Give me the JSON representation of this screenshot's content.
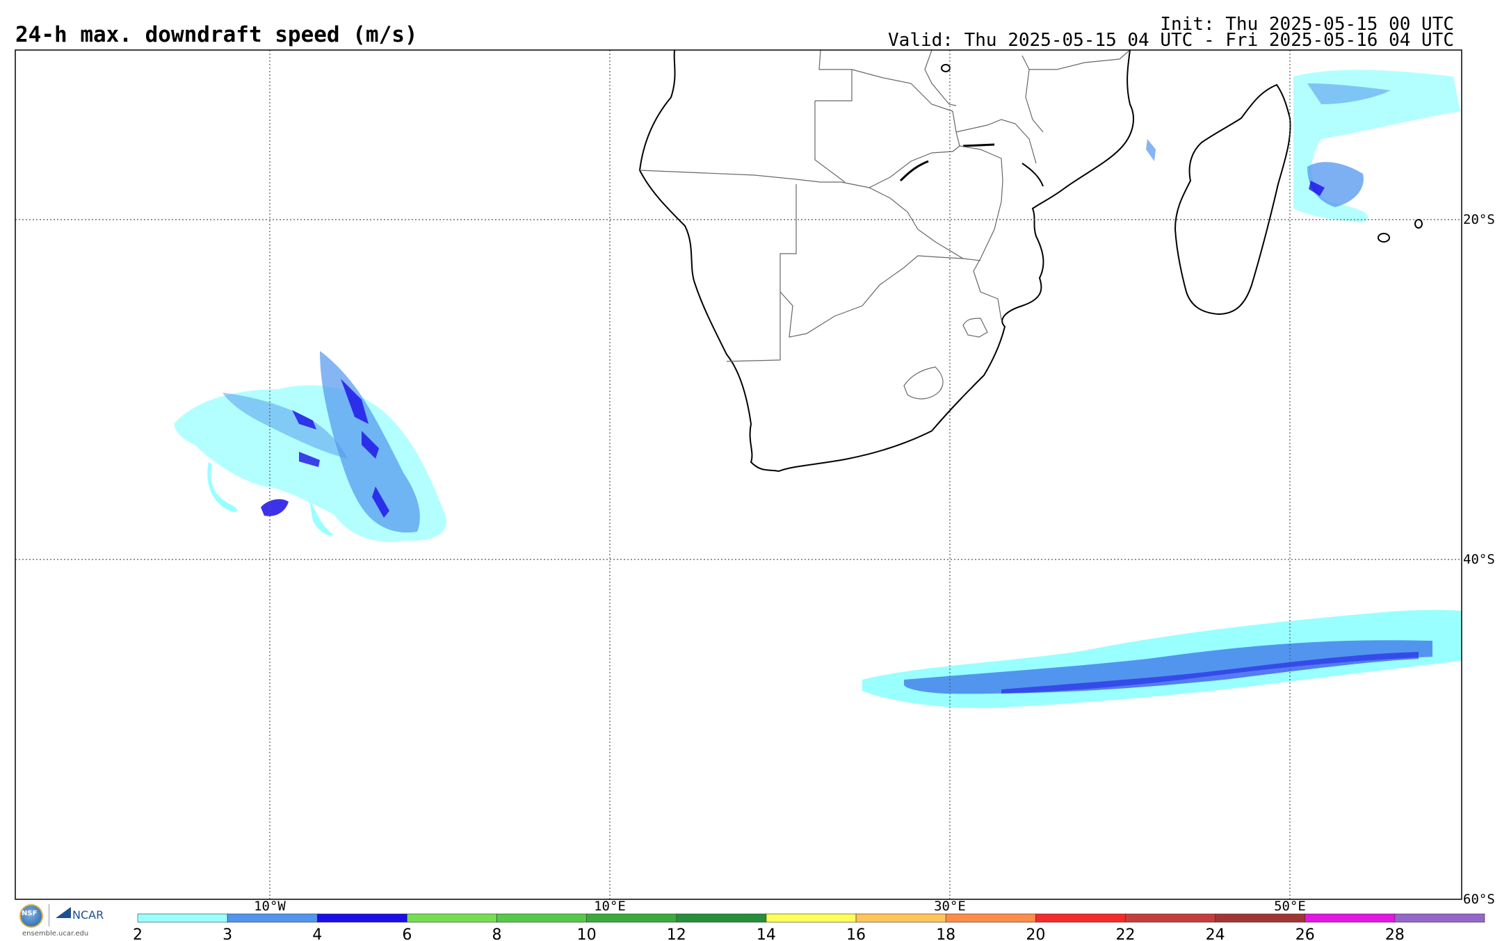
{
  "title": "24-h max. downdraft speed (m/s)",
  "init_text": "Init: Thu 2025-05-15 00 UTC",
  "valid_text": "Valid: Thu 2025-05-15 04 UTC - Fri 2025-05-16 04 UTC",
  "map": {
    "projection": "cylindrical",
    "lon_range": [
      -25,
      60
    ],
    "lat_range": [
      -60,
      -10
    ],
    "lon_grid": [
      -10,
      10,
      30,
      50
    ],
    "lat_grid": [
      -20,
      -40,
      -60
    ],
    "lon_labels": [
      "10°W",
      "10°E",
      "30°E",
      "50°E"
    ],
    "lat_labels": [
      "20°S",
      "40°S",
      "60°S"
    ],
    "coast_color": "#000000",
    "border_color": "#555555"
  },
  "colorbar": {
    "ticks": [
      "2",
      "3",
      "4",
      "6",
      "8",
      "10",
      "12",
      "14",
      "16",
      "18",
      "20",
      "22",
      "24",
      "26",
      "28"
    ],
    "colors": [
      "#99ffff",
      "#5295ee",
      "#1b0ee6",
      "#76dd52",
      "#55c94a",
      "#3aab3b",
      "#258f3c",
      "#ffff5a",
      "#ffc55a",
      "#ff8c4a",
      "#f52a2a",
      "#c73c3c",
      "#a33434",
      "#e316e5",
      "#9566c9"
    ]
  },
  "logo": {
    "url": "ensemble.ucar.edu",
    "org": "NCAR",
    "agency": "NSF"
  }
}
